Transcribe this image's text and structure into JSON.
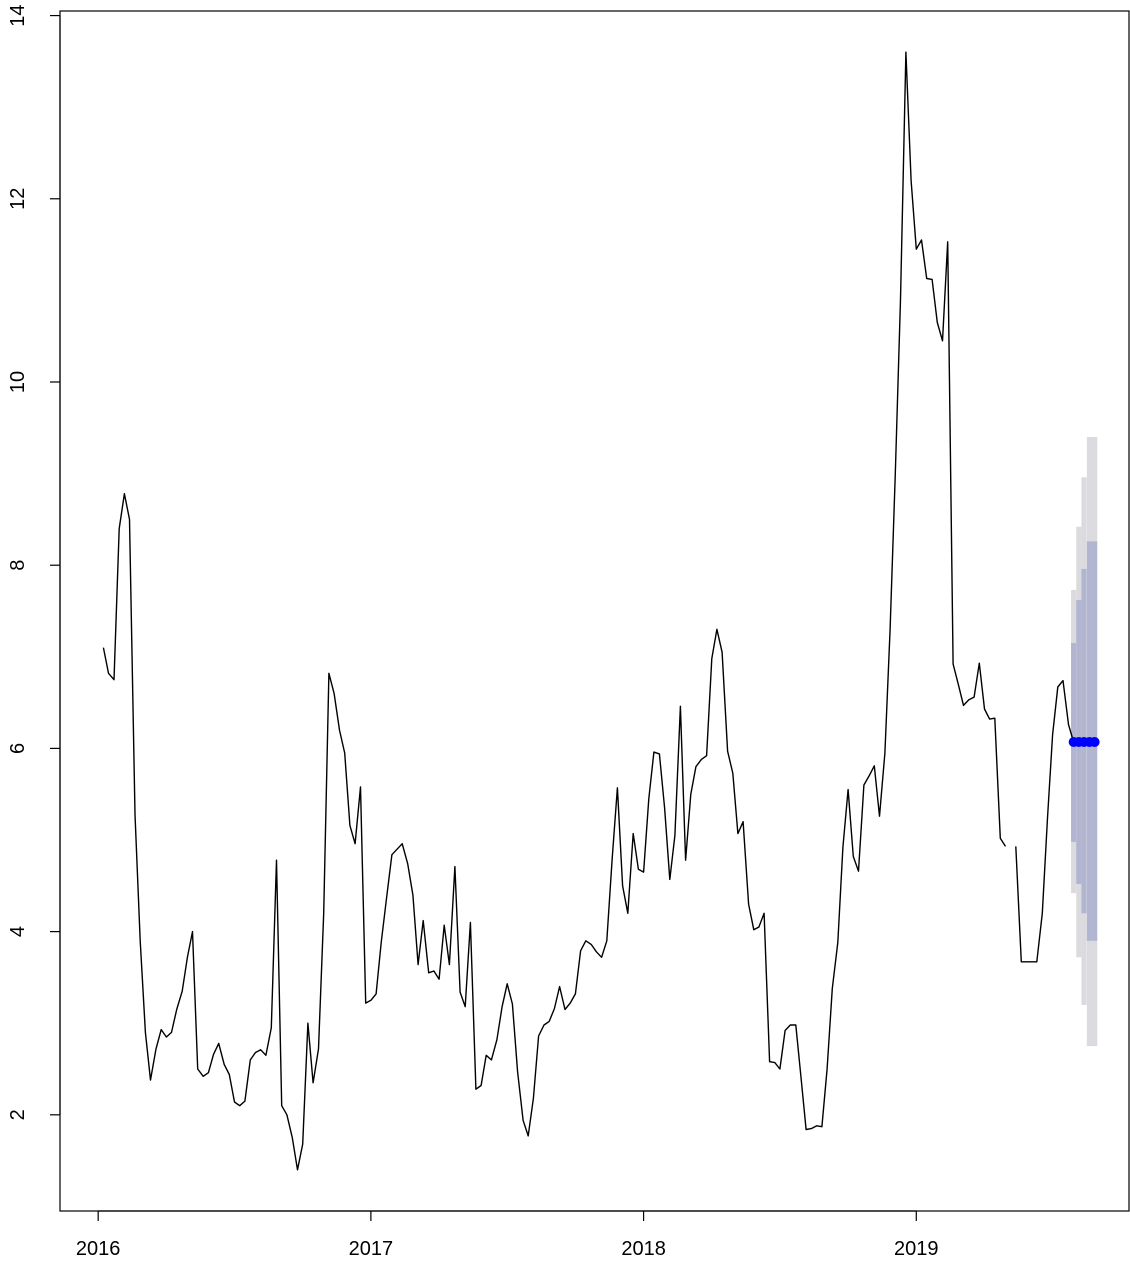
{
  "chart_data": {
    "type": "line",
    "title": "",
    "xlabel": "",
    "ylabel": "",
    "xlim": [
      2015.86,
      2019.78
    ],
    "ylim": [
      0.95,
      14.05
    ],
    "grid": false,
    "x_ticks": [
      {
        "value": 2016,
        "label": "2016"
      },
      {
        "value": 2017,
        "label": "2017"
      },
      {
        "value": 2018,
        "label": "2018"
      },
      {
        "value": 2019,
        "label": "2019"
      }
    ],
    "y_ticks": [
      {
        "value": 2,
        "label": "2"
      },
      {
        "value": 4,
        "label": "4"
      },
      {
        "value": 6,
        "label": "6"
      },
      {
        "value": 8,
        "label": "8"
      },
      {
        "value": 10,
        "label": "10"
      },
      {
        "value": 12,
        "label": "12"
      },
      {
        "value": 14,
        "label": "14"
      }
    ],
    "series": [
      {
        "color": "#000000",
        "points": [
          [
            2016.019,
            7.1
          ],
          [
            2016.038,
            6.82
          ],
          [
            2016.058,
            6.75
          ],
          [
            2016.077,
            8.4
          ],
          [
            2016.096,
            8.78
          ],
          [
            2016.115,
            8.5
          ],
          [
            2016.135,
            5.28
          ],
          [
            2016.154,
            3.9
          ],
          [
            2016.173,
            2.9
          ],
          [
            2016.192,
            2.38
          ],
          [
            2016.212,
            2.72
          ],
          [
            2016.231,
            2.93
          ],
          [
            2016.25,
            2.85
          ],
          [
            2016.269,
            2.9
          ],
          [
            2016.288,
            3.15
          ],
          [
            2016.308,
            3.35
          ],
          [
            2016.327,
            3.72
          ],
          [
            2016.346,
            4.0
          ],
          [
            2016.365,
            2.5
          ],
          [
            2016.385,
            2.42
          ],
          [
            2016.404,
            2.46
          ],
          [
            2016.423,
            2.66
          ],
          [
            2016.442,
            2.78
          ],
          [
            2016.462,
            2.55
          ],
          [
            2016.481,
            2.44
          ],
          [
            2016.5,
            2.14
          ],
          [
            2016.519,
            2.1
          ],
          [
            2016.538,
            2.15
          ],
          [
            2016.558,
            2.6
          ],
          [
            2016.577,
            2.68
          ],
          [
            2016.596,
            2.71
          ],
          [
            2016.615,
            2.65
          ],
          [
            2016.635,
            2.95
          ],
          [
            2016.654,
            4.78
          ],
          [
            2016.673,
            2.1
          ],
          [
            2016.692,
            2.0
          ],
          [
            2016.712,
            1.75
          ],
          [
            2016.731,
            1.4
          ],
          [
            2016.75,
            1.68
          ],
          [
            2016.769,
            3.0
          ],
          [
            2016.788,
            2.35
          ],
          [
            2016.808,
            2.72
          ],
          [
            2016.827,
            4.2
          ],
          [
            2016.846,
            6.82
          ],
          [
            2016.865,
            6.6
          ],
          [
            2016.885,
            6.2
          ],
          [
            2016.904,
            5.95
          ],
          [
            2016.923,
            5.16
          ],
          [
            2016.942,
            4.96
          ],
          [
            2016.962,
            5.58
          ],
          [
            2016.981,
            3.22
          ],
          [
            2017.0,
            3.25
          ],
          [
            2017.019,
            3.32
          ],
          [
            2017.038,
            3.88
          ],
          [
            2017.058,
            4.38
          ],
          [
            2017.077,
            4.84
          ],
          [
            2017.096,
            4.9
          ],
          [
            2017.115,
            4.96
          ],
          [
            2017.135,
            4.74
          ],
          [
            2017.154,
            4.4
          ],
          [
            2017.173,
            3.64
          ],
          [
            2017.192,
            4.12
          ],
          [
            2017.212,
            3.55
          ],
          [
            2017.231,
            3.57
          ],
          [
            2017.25,
            3.48
          ],
          [
            2017.269,
            4.07
          ],
          [
            2017.288,
            3.64
          ],
          [
            2017.308,
            4.71
          ],
          [
            2017.327,
            3.34
          ],
          [
            2017.346,
            3.18
          ],
          [
            2017.365,
            4.1
          ],
          [
            2017.385,
            2.28
          ],
          [
            2017.404,
            2.32
          ],
          [
            2017.423,
            2.65
          ],
          [
            2017.442,
            2.6
          ],
          [
            2017.462,
            2.82
          ],
          [
            2017.481,
            3.18
          ],
          [
            2017.5,
            3.43
          ],
          [
            2017.519,
            3.21
          ],
          [
            2017.538,
            2.47
          ],
          [
            2017.558,
            1.94
          ],
          [
            2017.577,
            1.77
          ],
          [
            2017.596,
            2.18
          ],
          [
            2017.615,
            2.86
          ],
          [
            2017.635,
            2.98
          ],
          [
            2017.654,
            3.02
          ],
          [
            2017.673,
            3.16
          ],
          [
            2017.692,
            3.4
          ],
          [
            2017.712,
            3.15
          ],
          [
            2017.731,
            3.22
          ],
          [
            2017.75,
            3.32
          ],
          [
            2017.769,
            3.79
          ],
          [
            2017.788,
            3.9
          ],
          [
            2017.808,
            3.86
          ],
          [
            2017.827,
            3.78
          ],
          [
            2017.846,
            3.72
          ],
          [
            2017.865,
            3.9
          ],
          [
            2017.885,
            4.8
          ],
          [
            2017.904,
            5.57
          ],
          [
            2017.923,
            4.5
          ],
          [
            2017.942,
            4.2
          ],
          [
            2017.962,
            5.07
          ],
          [
            2017.981,
            4.68
          ],
          [
            2018.0,
            4.65
          ],
          [
            2018.019,
            5.45
          ],
          [
            2018.038,
            5.96
          ],
          [
            2018.058,
            5.94
          ],
          [
            2018.077,
            5.35
          ],
          [
            2018.096,
            4.57
          ],
          [
            2018.115,
            5.05
          ],
          [
            2018.135,
            6.46
          ],
          [
            2018.154,
            4.78
          ],
          [
            2018.173,
            5.5
          ],
          [
            2018.192,
            5.8
          ],
          [
            2018.212,
            5.88
          ],
          [
            2018.231,
            5.92
          ],
          [
            2018.25,
            6.98
          ],
          [
            2018.269,
            7.3
          ],
          [
            2018.288,
            7.05
          ],
          [
            2018.308,
            5.97
          ],
          [
            2018.327,
            5.73
          ],
          [
            2018.346,
            5.07
          ],
          [
            2018.365,
            5.2
          ],
          [
            2018.385,
            4.3
          ],
          [
            2018.404,
            4.02
          ],
          [
            2018.423,
            4.05
          ],
          [
            2018.442,
            4.2
          ],
          [
            2018.462,
            2.58
          ],
          [
            2018.481,
            2.57
          ],
          [
            2018.5,
            2.5
          ],
          [
            2018.519,
            2.92
          ],
          [
            2018.538,
            2.98
          ],
          [
            2018.558,
            2.98
          ],
          [
            2018.577,
            2.42
          ],
          [
            2018.596,
            1.84
          ],
          [
            2018.615,
            1.85
          ],
          [
            2018.635,
            1.88
          ],
          [
            2018.654,
            1.87
          ],
          [
            2018.673,
            2.5
          ],
          [
            2018.692,
            3.38
          ],
          [
            2018.712,
            3.88
          ],
          [
            2018.731,
            4.92
          ],
          [
            2018.75,
            5.55
          ],
          [
            2018.769,
            4.82
          ],
          [
            2018.788,
            4.66
          ],
          [
            2018.808,
            5.6
          ],
          [
            2018.827,
            5.7
          ],
          [
            2018.846,
            5.81
          ],
          [
            2018.865,
            5.26
          ],
          [
            2018.885,
            5.95
          ],
          [
            2018.904,
            7.3
          ],
          [
            2018.923,
            9.0
          ],
          [
            2018.942,
            10.9
          ],
          [
            2018.962,
            13.6
          ],
          [
            2018.981,
            12.2
          ],
          [
            2019.0,
            11.45
          ],
          [
            2019.019,
            11.55
          ],
          [
            2019.038,
            11.13
          ],
          [
            2019.058,
            11.12
          ],
          [
            2019.077,
            10.65
          ],
          [
            2019.096,
            10.45
          ],
          [
            2019.115,
            11.53
          ],
          [
            2019.135,
            6.92
          ],
          [
            2019.154,
            6.7
          ],
          [
            2019.173,
            6.47
          ],
          [
            2019.192,
            6.53
          ],
          [
            2019.212,
            6.56
          ],
          [
            2019.231,
            6.93
          ],
          [
            2019.25,
            6.43
          ],
          [
            2019.269,
            6.32
          ],
          [
            2019.288,
            6.33
          ],
          [
            2019.308,
            5.02
          ],
          [
            2019.327,
            4.93
          ],
          [
            2019.346,
            null
          ],
          [
            2019.365,
            4.93
          ],
          [
            2019.385,
            3.67
          ],
          [
            2019.404,
            3.67
          ],
          [
            2019.423,
            3.67
          ],
          [
            2019.442,
            3.67
          ],
          [
            2019.462,
            4.2
          ],
          [
            2019.481,
            5.24
          ],
          [
            2019.5,
            6.15
          ],
          [
            2019.519,
            6.67
          ],
          [
            2019.538,
            6.74
          ],
          [
            2019.558,
            6.26
          ],
          [
            2019.577,
            6.07
          ]
        ]
      }
    ],
    "forecast": {
      "point_color": "#0000ff",
      "inner_band_color": "#b1b5cf",
      "outer_band_color": "#dbdbdf",
      "x": [
        2019.577,
        2019.596,
        2019.615,
        2019.635,
        2019.654
      ],
      "mean": [
        6.07,
        6.07,
        6.07,
        6.07,
        6.07
      ],
      "lower_inner": [
        4.98,
        4.52,
        4.2,
        3.9,
        3.9
      ],
      "upper_inner": [
        7.15,
        7.62,
        7.96,
        8.26,
        8.26
      ],
      "lower_outer": [
        4.42,
        3.72,
        3.2,
        2.75,
        2.75
      ],
      "upper_outer": [
        7.73,
        8.42,
        8.96,
        9.4,
        9.4
      ]
    }
  }
}
